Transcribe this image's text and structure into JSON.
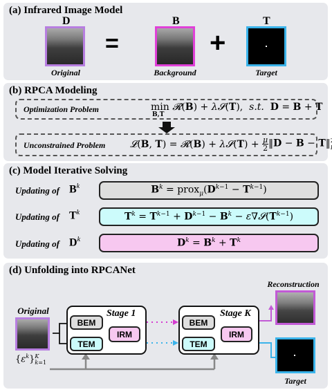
{
  "panel_a": {
    "title": "(a) Infrared Image Model",
    "letter_d": "D",
    "letter_b": "B",
    "letter_t": "T",
    "caption_original": "Original",
    "caption_background": "Background",
    "caption_target": "Target",
    "equals_symbol": "=",
    "plus_symbol": "+"
  },
  "panel_b": {
    "title": "(b) RPCA Modeling",
    "opt_label": "Optimization Problem",
    "unc_label": "Unconstrained Problem"
  },
  "panel_c": {
    "title": "(c) Model Iterative Solving",
    "updating_label": "Updating of",
    "symbols": [
      "B",
      "T",
      "D"
    ],
    "superscript": "k"
  },
  "panel_d": {
    "title": "(d) Unfolding into RPCANet",
    "original_label": "Original",
    "stage1_label": "Stage 1",
    "stagek_label": "Stage K",
    "bem": "BEM",
    "tem": "TEM",
    "irm": "IRM",
    "reconstruction_label": "Reconstruction",
    "target_label": "Target"
  },
  "colors": {
    "purple": "#b77ee0",
    "magenta": "#e040d8",
    "cyan": "#3ab3ea",
    "grey_box": "#dedede",
    "cyan_box": "#ccfbfb",
    "pink_box": "#f7c8f0",
    "panel_bg": "#e7e8ec"
  }
}
